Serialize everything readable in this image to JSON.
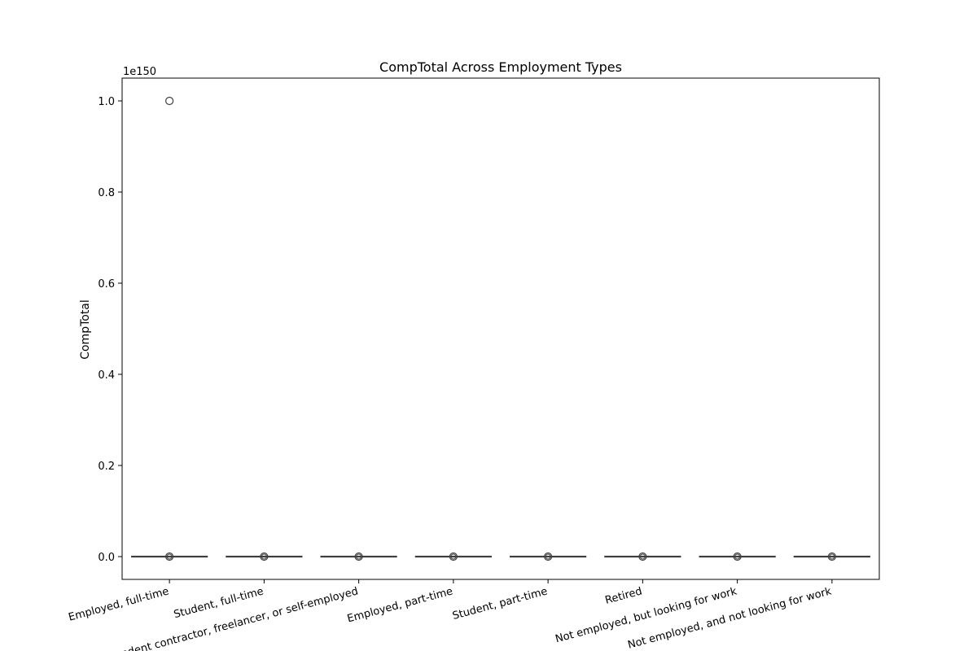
{
  "chart_data": {
    "type": "box",
    "title": "CompTotal Across Employment Types",
    "xlabel": "",
    "ylabel": "CompTotal",
    "y_scale_label": "1e150",
    "y_multiplier": "1e150",
    "ylim": [
      -0.05,
      1.05
    ],
    "yticks": [
      0.0,
      0.2,
      0.4,
      0.6,
      0.8,
      1.0
    ],
    "ytick_labels": [
      "0.0",
      "0.2",
      "0.4",
      "0.6",
      "0.8",
      "1.0"
    ],
    "categories": [
      "Employed, full-time",
      "Student, full-time",
      "Independent contractor, freelancer, or self-employed",
      "Employed, part-time",
      "Student, part-time",
      "Retired",
      "Not employed, but looking for work",
      "Not employed, and not looking for work"
    ],
    "series": [
      {
        "boxes": [
          {
            "q1": 0,
            "median": 0,
            "q3": 0,
            "whisker_low": 0,
            "whisker_high": 0,
            "outliers": [
              1.0,
              0
            ]
          },
          {
            "q1": 0,
            "median": 0,
            "q3": 0,
            "whisker_low": 0,
            "whisker_high": 0,
            "outliers": [
              0
            ]
          },
          {
            "q1": 0,
            "median": 0,
            "q3": 0,
            "whisker_low": 0,
            "whisker_high": 0,
            "outliers": [
              0
            ]
          },
          {
            "q1": 0,
            "median": 0,
            "q3": 0,
            "whisker_low": 0,
            "whisker_high": 0,
            "outliers": [
              0
            ]
          },
          {
            "q1": 0,
            "median": 0,
            "q3": 0,
            "whisker_low": 0,
            "whisker_high": 0,
            "outliers": [
              0
            ]
          },
          {
            "q1": 0,
            "median": 0,
            "q3": 0,
            "whisker_low": 0,
            "whisker_high": 0,
            "outliers": [
              0
            ]
          },
          {
            "q1": 0,
            "median": 0,
            "q3": 0,
            "whisker_low": 0,
            "whisker_high": 0,
            "outliers": [
              0
            ]
          },
          {
            "q1": 0,
            "median": 0,
            "q3": 0,
            "whisker_low": 0,
            "whisker_high": 0,
            "outliers": [
              0
            ]
          }
        ]
      }
    ],
    "grid": false,
    "legend": "none",
    "colors": {
      "box_line": "#3f3f3f",
      "axis": "#000000"
    }
  }
}
